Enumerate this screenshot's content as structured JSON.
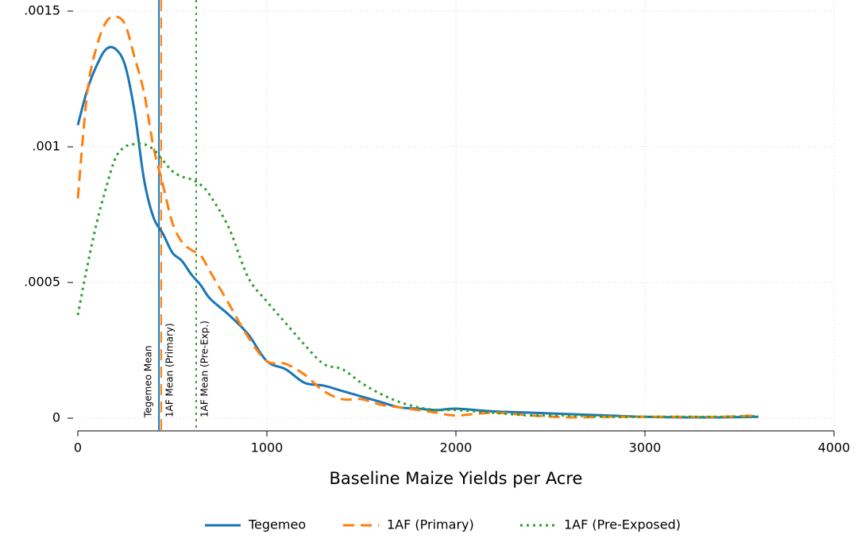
{
  "chart_data": {
    "type": "line",
    "x_label": "Baseline Maize Yields per Acre",
    "x": [
      0,
      50,
      100,
      150,
      200,
      250,
      300,
      350,
      400,
      450,
      500,
      550,
      600,
      650,
      700,
      800,
      900,
      1000,
      1100,
      1200,
      1300,
      1400,
      1500,
      1600,
      1700,
      1800,
      1900,
      2000,
      2200,
      2400,
      2600,
      2800,
      3000,
      3200,
      3400,
      3600
    ],
    "series": [
      {
        "name": "Tegemeo",
        "color": "#1a76b5",
        "dash": "none",
        "values": [
          0.00108,
          0.00121,
          0.0013,
          0.00136,
          0.00136,
          0.0013,
          0.00113,
          0.00088,
          0.00074,
          0.00068,
          0.00061,
          0.00058,
          0.00053,
          0.00049,
          0.00044,
          0.00038,
          0.00031,
          0.00021,
          0.00018,
          0.00013,
          0.00012,
          0.0001,
          8e-05,
          6e-05,
          4e-05,
          3.5e-05,
          3e-05,
          3.5e-05,
          2.5e-05,
          2e-05,
          1.5e-05,
          1e-05,
          5e-06,
          3e-06,
          3e-06,
          5e-06
        ]
      },
      {
        "name": "1AF (Primary)",
        "color": "#ff7f0e",
        "dash": "14 8",
        "values": [
          0.00081,
          0.0012,
          0.00137,
          0.00146,
          0.00148,
          0.00145,
          0.00133,
          0.0012,
          0.001,
          0.00086,
          0.00072,
          0.00065,
          0.00062,
          0.0006,
          0.00054,
          0.00042,
          0.0003,
          0.00021,
          0.0002,
          0.00016,
          0.0001,
          7e-05,
          7e-05,
          5e-05,
          4e-05,
          3e-05,
          2e-05,
          1e-05,
          2e-05,
          1e-05,
          3e-06,
          5e-06,
          5e-06,
          5e-06,
          5e-06,
          1e-05
        ]
      },
      {
        "name": "1AF (Pre-Exposed)",
        "color": "#2ca02c",
        "dash": "3 5",
        "values": [
          0.00038,
          0.00056,
          0.00072,
          0.00085,
          0.00096,
          0.001,
          0.00101,
          0.00101,
          0.00099,
          0.00095,
          0.00091,
          0.00089,
          0.00088,
          0.00086,
          0.00082,
          0.0007,
          0.00052,
          0.00043,
          0.00035,
          0.00027,
          0.0002,
          0.00018,
          0.00013,
          9e-05,
          6e-05,
          4e-05,
          3e-05,
          3e-05,
          2e-05,
          1e-05,
          1e-05,
          5e-06,
          5e-06,
          5e-06,
          5e-06,
          8e-06
        ]
      }
    ],
    "vlines": [
      {
        "x": 429,
        "label": "Tegemeo Mean",
        "color": "#1a76b5",
        "dash": "none"
      },
      {
        "x": 441,
        "label": "1AF Mean (Primary)",
        "color": "#ff7f0e",
        "dash": "14 8"
      },
      {
        "x": 626,
        "label": "1AF Mean (Pre-Exp.)",
        "color": "#2ca02c",
        "dash": "3 5"
      }
    ],
    "xlim": [
      0,
      4000
    ],
    "xticks": [
      0,
      1000,
      2000,
      3000,
      4000
    ],
    "ylim": [
      0,
      0.0015
    ],
    "yticks": [
      0,
      {
        "value": 0.0005,
        "label": ".0005"
      },
      {
        "value": 0.001,
        "label": ".001"
      },
      {
        "value": 0.0015,
        "label": ".0015"
      }
    ],
    "grid": true,
    "legend": "bottom"
  }
}
